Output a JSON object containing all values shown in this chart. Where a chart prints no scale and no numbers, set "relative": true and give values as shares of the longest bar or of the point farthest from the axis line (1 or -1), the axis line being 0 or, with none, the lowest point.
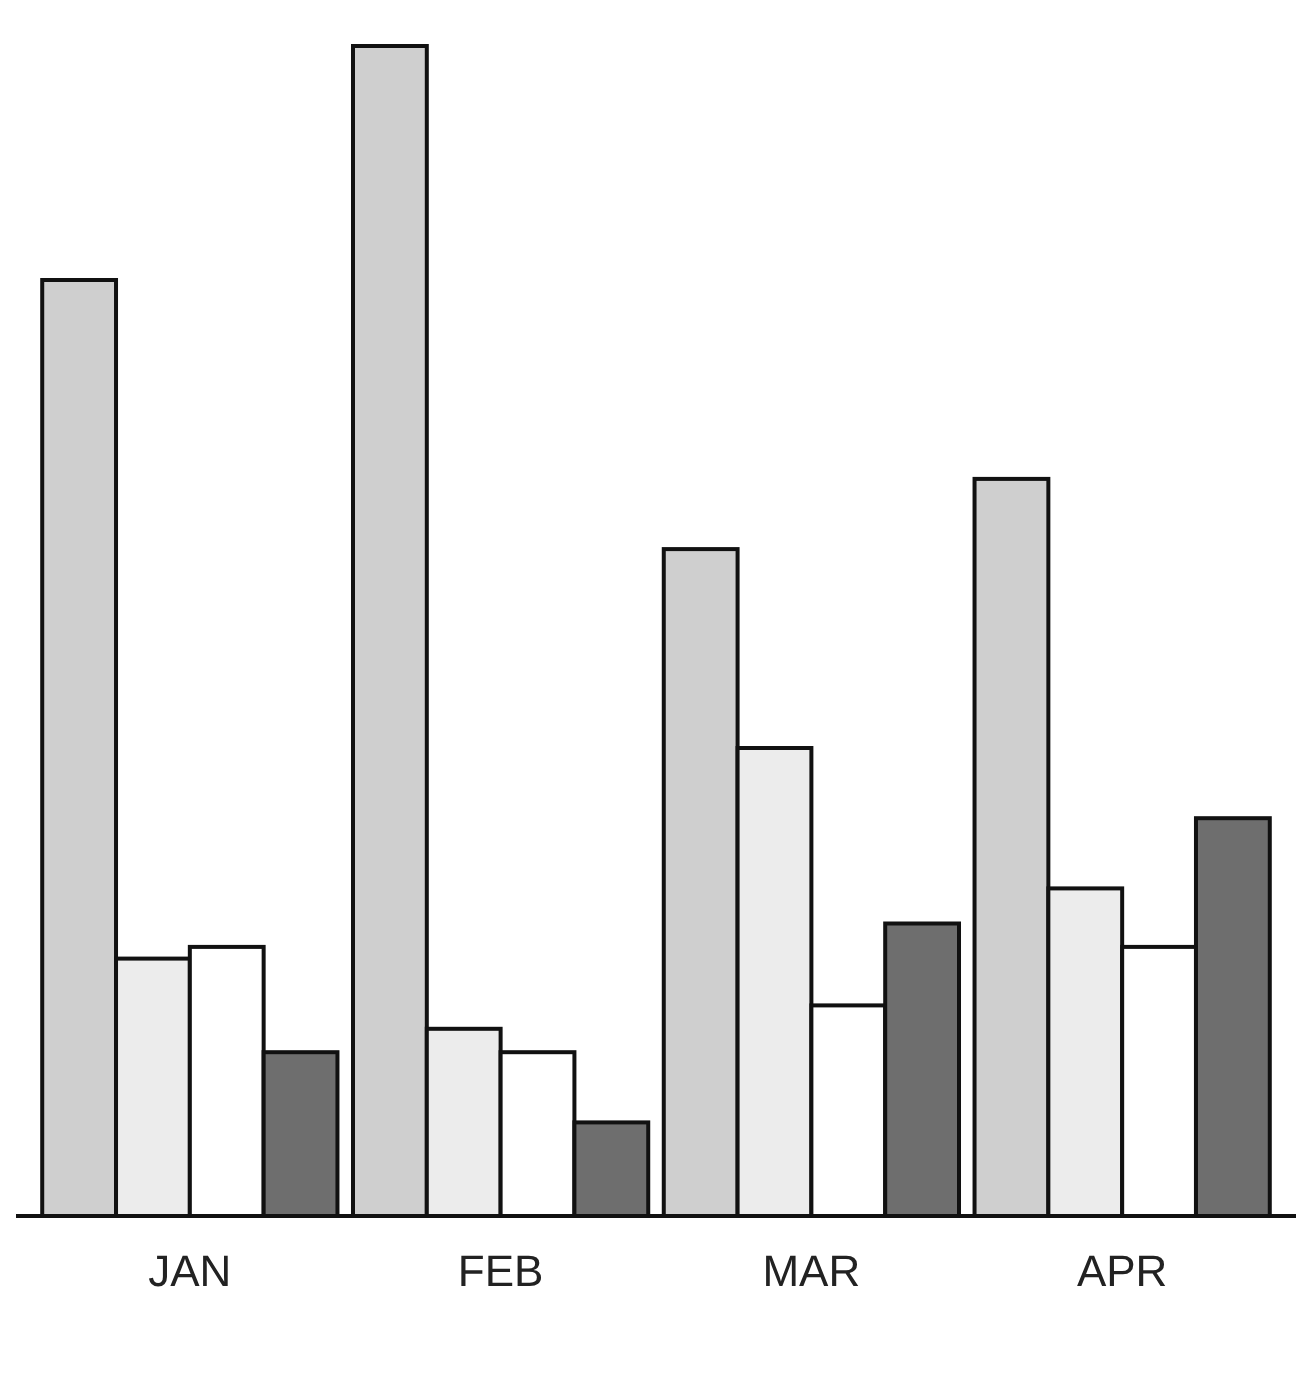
{
  "chart_data": {
    "type": "bar",
    "relative": true,
    "categories": [
      "JAN",
      "FEB",
      "MAR",
      "APR"
    ],
    "series": [
      {
        "color": "#cfcfcf",
        "values": [
          0.8,
          1,
          0.57,
          0.63
        ]
      },
      {
        "color": "#ececec",
        "values": [
          0.22,
          0.16,
          0.4,
          0.28
        ]
      },
      {
        "color": "#ffffff",
        "values": [
          0.23,
          0.14,
          0.18,
          0.23
        ]
      },
      {
        "color": "#6e6e6e",
        "values": [
          0.14,
          0.08,
          0.25,
          0.34
        ]
      }
    ]
  }
}
